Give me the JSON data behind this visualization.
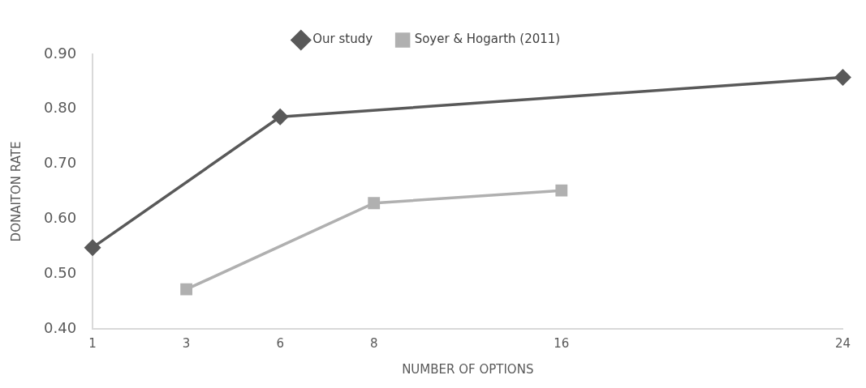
{
  "chart_data": {
    "type": "line",
    "xlabel": "NUMBER OF OPTIONS",
    "ylabel": "DONAITON RATE",
    "categories": [
      "1",
      "3",
      "6",
      "8",
      null,
      "16",
      null,
      null,
      "24"
    ],
    "series": [
      {
        "name": "Our study",
        "color": "#595959",
        "marker": "diamond",
        "values": [
          0.548,
          null,
          0.786,
          null,
          null,
          null,
          null,
          null,
          0.858
        ]
      },
      {
        "name": "Soyer & Hogarth (2011)",
        "color": "#b0b0b0",
        "marker": "square",
        "values": [
          null,
          0.472,
          null,
          0.629,
          null,
          0.652,
          null,
          null,
          null
        ]
      }
    ],
    "ylim": [
      0.4,
      0.9
    ],
    "yticks": [
      {
        "value": 0.4,
        "label": "0.40"
      },
      {
        "value": 0.5,
        "label": "0.50"
      },
      {
        "value": 0.6,
        "label": "0.60"
      },
      {
        "value": 0.7,
        "label": "0.70"
      },
      {
        "value": 0.8,
        "label": "0.80"
      },
      {
        "value": 0.9,
        "label": "0.90"
      }
    ],
    "legend": "top",
    "grid": false
  }
}
